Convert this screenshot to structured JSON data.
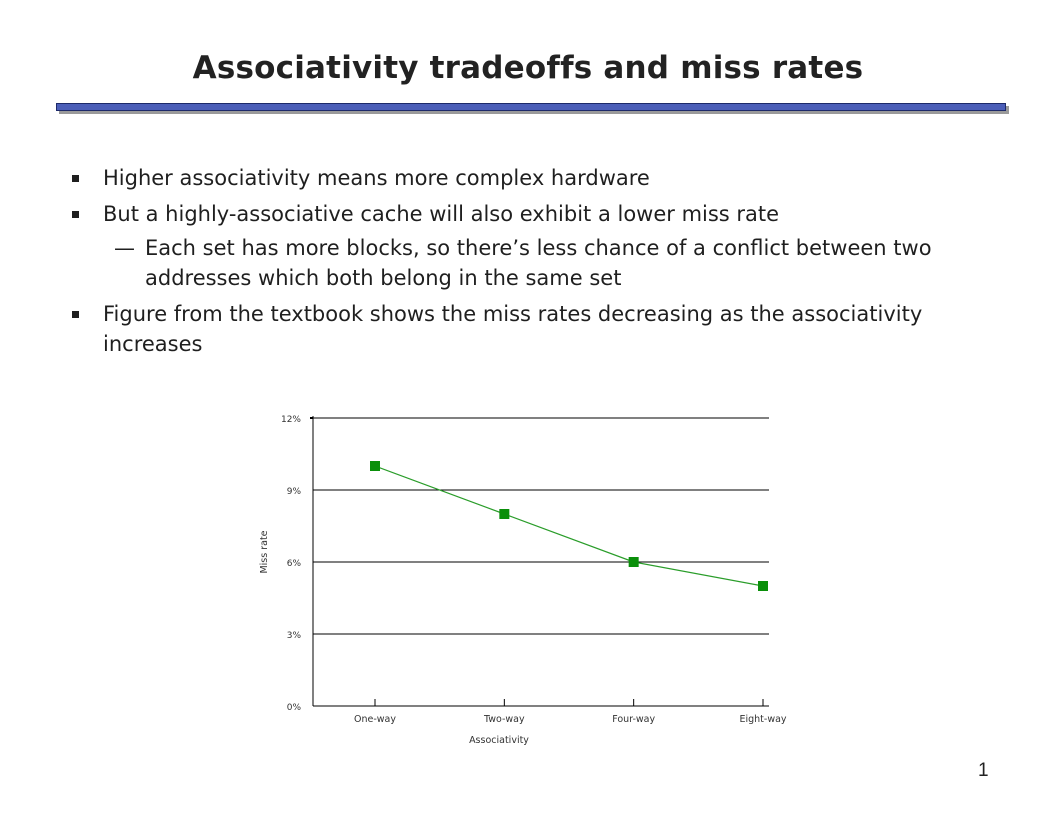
{
  "slide": {
    "title": "Associativity tradeoffs and miss rates",
    "page_number": "1"
  },
  "bullets": [
    {
      "text": "Higher associativity means more complex hardware"
    },
    {
      "text": "But a highly-associative cache will also exhibit a lower miss rate"
    },
    {
      "dash": "—",
      "text": "Each set has more blocks, so there’s less chance of a conflict between two addresses which both belong in the same set"
    },
    {
      "text": "Figure from the textbook shows the miss rates decreasing as the associativity increases"
    }
  ],
  "chart_data": {
    "type": "line",
    "categories": [
      "One-way",
      "Two-way",
      "Four-way",
      "Eight-way"
    ],
    "series": [
      {
        "values": [
          10.0,
          8.0,
          6.0,
          5.0
        ]
      }
    ],
    "xlabel": "Associativity",
    "ylabel": "Miss rate",
    "ylim": [
      0,
      12
    ],
    "yticks": [
      0,
      3,
      6,
      9,
      12
    ],
    "ytick_labels": [
      "0%",
      "3%",
      "6%",
      "9%",
      "12%"
    ],
    "grid": true,
    "marker": "square",
    "colors": {
      "line": "#2a9d2a",
      "marker": "#0a8f0a",
      "grid": "#000000"
    }
  }
}
